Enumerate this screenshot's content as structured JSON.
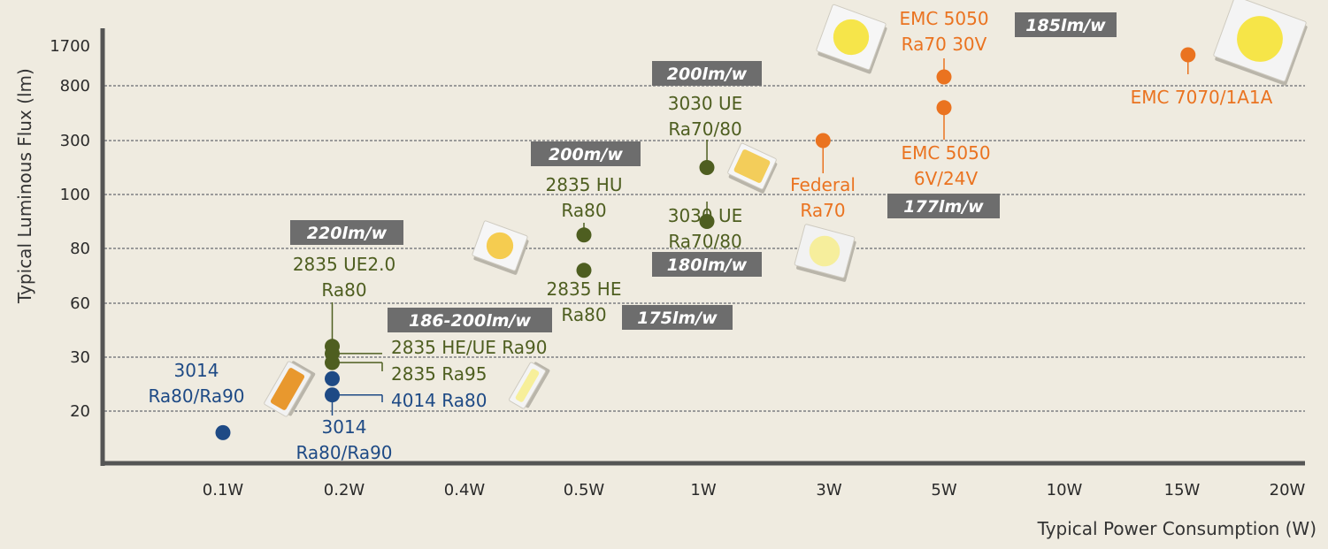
{
  "colors": {
    "background": "#efebe0",
    "green": "#4e5e20",
    "blue": "#1e4a85",
    "orange": "#ea7320",
    "badge": "#6d6d6d",
    "grid": "#9a9a9a",
    "axis": "#555555"
  },
  "chart_data": {
    "type": "scatter",
    "title": "",
    "xlabel": "Typical Power Consumption (W)",
    "ylabel": "Typical Luminous Flux (lm)",
    "x_categories": [
      "0.1W",
      "0.2W",
      "0.4W",
      "0.5W",
      "1W",
      "3W",
      "5W",
      "10W",
      "15W",
      "20W"
    ],
    "y_ticks": [
      "20",
      "30",
      "60",
      "80",
      "100",
      "300",
      "800",
      "1700"
    ],
    "grid": "horizontal dashed",
    "points": [
      {
        "x": "0.1W",
        "x_offset": 0.0,
        "y": 16,
        "color": "blue"
      },
      {
        "x": "0.2W",
        "x_offset": -0.1,
        "y": 23,
        "color": "blue"
      },
      {
        "x": "0.2W",
        "x_offset": -0.1,
        "y": 26,
        "color": "blue"
      },
      {
        "x": "0.2W",
        "x_offset": -0.1,
        "y": 29,
        "color": "green"
      },
      {
        "x": "0.2W",
        "x_offset": -0.1,
        "y": 32,
        "color": "green"
      },
      {
        "x": "0.2W",
        "x_offset": -0.1,
        "y": 36,
        "color": "green"
      },
      {
        "x": "0.5W",
        "x_offset": 0.0,
        "y": 72,
        "color": "green"
      },
      {
        "x": "0.5W",
        "x_offset": 0.0,
        "y": 85,
        "color": "green"
      },
      {
        "x": "1W",
        "x_offset": 0.03,
        "y": 90,
        "color": "green"
      },
      {
        "x": "1W",
        "x_offset": 0.03,
        "y": 200,
        "color": "green"
      },
      {
        "x": "3W",
        "x_offset": -0.05,
        "y": 300,
        "color": "orange"
      },
      {
        "x": "5W",
        "x_offset": 0.0,
        "y": 600,
        "color": "orange"
      },
      {
        "x": "5W",
        "x_offset": 0.0,
        "y": 1000,
        "color": "orange"
      },
      {
        "x": "15W",
        "x_offset": 0.05,
        "y": 1500,
        "color": "orange"
      }
    ],
    "labels": [
      {
        "lines": [
          "3014",
          "Ra80/Ra90"
        ],
        "color": "blue"
      },
      {
        "lines": [
          "3014",
          "Ra80/Ra90"
        ],
        "color": "blue"
      },
      {
        "lines": [
          "4014 Ra80"
        ],
        "color": "blue"
      },
      {
        "lines": [
          "2835 Ra95"
        ],
        "color": "green"
      },
      {
        "lines": [
          "2835 HE/UE Ra90"
        ],
        "color": "green"
      },
      {
        "lines": [
          "2835 UE2.0",
          "Ra80"
        ],
        "color": "green"
      },
      {
        "lines": [
          "2835 HE",
          "Ra80"
        ],
        "color": "green"
      },
      {
        "lines": [
          "2835 HU",
          "Ra80"
        ],
        "color": "green"
      },
      {
        "lines": [
          "3030 UE",
          "Ra70/80"
        ],
        "color": "green"
      },
      {
        "lines": [
          "3030 UE",
          "Ra70/80"
        ],
        "color": "green"
      },
      {
        "lines": [
          "Federal",
          "Ra70"
        ],
        "color": "orange"
      },
      {
        "lines": [
          "EMC 5050",
          "6V/24V"
        ],
        "color": "orange"
      },
      {
        "lines": [
          "EMC 5050",
          "Ra70 30V"
        ],
        "color": "orange"
      },
      {
        "lines": [
          "EMC 7070/1A1A"
        ],
        "color": "orange"
      }
    ],
    "efficacy_badges": [
      "220lm/w",
      "186-200lm/w",
      "200m/w",
      "175lm/w",
      "200lm/w",
      "180lm/w",
      "177lm/w",
      "185lm/w"
    ],
    "package_icons": [
      "led-3014-icon",
      "led-4014-icon",
      "led-2835-icon",
      "led-3030-icon",
      "led-federal-icon",
      "led-5050-icon",
      "led-7070-icon"
    ]
  }
}
